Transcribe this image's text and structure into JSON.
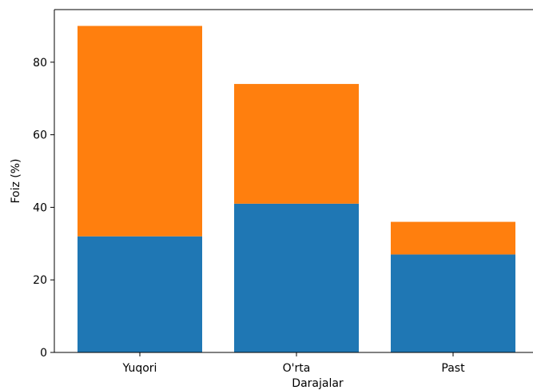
{
  "chart_data": {
    "type": "bar",
    "stacked": true,
    "categories": [
      "Yuqori",
      "O'rta",
      "Past"
    ],
    "series": [
      {
        "color": "#1f77b4",
        "values": [
          32,
          41,
          27
        ]
      },
      {
        "color": "#ff7f0e",
        "values": [
          58,
          33,
          9
        ]
      }
    ],
    "totals": [
      90,
      74,
      36
    ],
    "xlabel": "Darajalar",
    "ylabel": "Foiz (%)",
    "ylim": [
      0,
      94.5
    ],
    "yticks": [
      0,
      20,
      40,
      60,
      80
    ],
    "grid": false,
    "legend": "none"
  }
}
